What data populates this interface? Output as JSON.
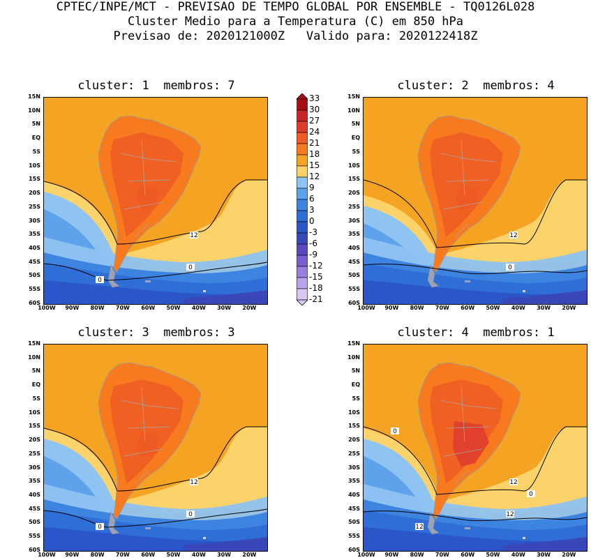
{
  "header": {
    "line1": "CPTEC/INPE/MCT - PREVISAO DE TEMPO GLOBAL POR ENSEMBLE - TQ0126L028",
    "line2": "Cluster Medio para a Temperatura (C) em 850 hPa",
    "line3": "Previsao de: 2020121000Z   Valido para: 2020122418Z"
  },
  "panels": [
    {
      "title": "cluster: 1  membros: 7"
    },
    {
      "title": "cluster: 2  membros: 4"
    },
    {
      "title": "cluster: 3  membros: 3"
    },
    {
      "title": "cluster: 4  membros: 1"
    }
  ],
  "axes": {
    "y_ticks": [
      "15N",
      "10N",
      "5N",
      "EQ",
      "5S",
      "10S",
      "15S",
      "20S",
      "25S",
      "30S",
      "35S",
      "40S",
      "45S",
      "50S",
      "55S",
      "60S"
    ],
    "x_ticks": [
      "100W",
      "90W",
      "80W",
      "70W",
      "60W",
      "50W",
      "40W",
      "30W",
      "20W"
    ]
  },
  "colorbar": {
    "levels": [
      "33",
      "30",
      "27",
      "24",
      "21",
      "18",
      "15",
      "12",
      "9",
      "6",
      "3",
      "0",
      "-3",
      "-6",
      "-9",
      "-12",
      "-15",
      "-18",
      "-21"
    ],
    "colors": [
      "#a50f15",
      "#c8252b",
      "#de3b2e",
      "#ee5a24",
      "#f77a1f",
      "#f5a323",
      "#fcd36a",
      "#8fc3f2",
      "#5da2ea",
      "#3d83e0",
      "#2f6dd7",
      "#2a56c9",
      "#3a47b8",
      "#5b48c0",
      "#7b5ed0",
      "#9b7fe0",
      "#b9a3ea",
      "#d6c8f2"
    ]
  },
  "contour_labels": {
    "p1": [
      "12",
      "0",
      "0"
    ],
    "p2": [
      "12",
      "0"
    ],
    "p3": [
      "12",
      "0",
      "0"
    ],
    "p4": [
      "12",
      "12",
      "12",
      "0",
      "0"
    ]
  }
}
